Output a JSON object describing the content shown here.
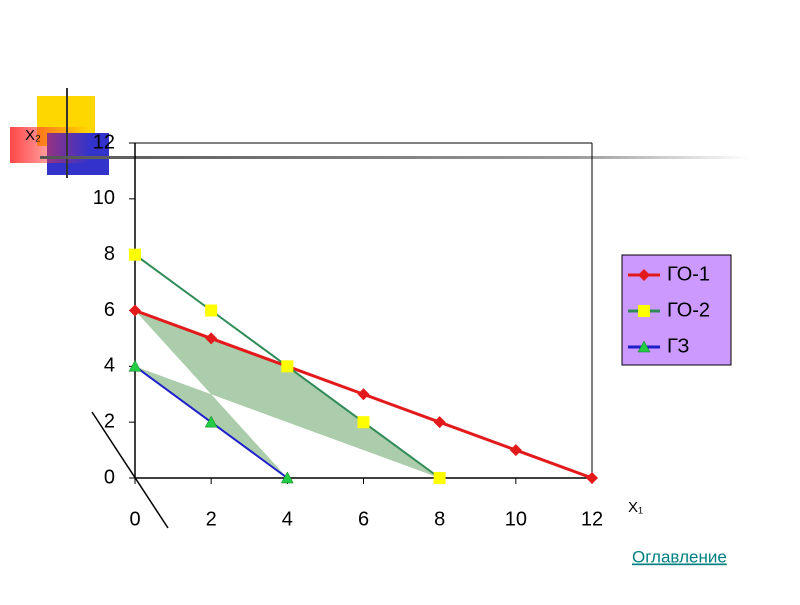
{
  "chart_data": {
    "type": "line",
    "xlabel": "X₁",
    "ylabel": "X₂",
    "xlim": [
      0,
      12
    ],
    "ylim": [
      0,
      12
    ],
    "xticks": [
      0,
      2,
      4,
      6,
      8,
      10,
      12
    ],
    "yticks": [
      0,
      2,
      4,
      6,
      8,
      10,
      12
    ],
    "legend": "right",
    "series": [
      {
        "name": "ГО-1",
        "color": "#e31a1c",
        "marker": "diamond",
        "marker_color": "#e31a1c",
        "x": [
          0,
          2,
          4,
          6,
          8,
          10,
          12
        ],
        "values": [
          6,
          5,
          4,
          3,
          2,
          1,
          0
        ]
      },
      {
        "name": "ГО-2",
        "color": "#2e8b57",
        "marker": "square",
        "marker_color": "#ffff00",
        "x": [
          0,
          2,
          4,
          6,
          8
        ],
        "values": [
          8,
          6,
          4,
          2,
          0
        ]
      },
      {
        "name": "ГЗ",
        "color": "#1f1fcc",
        "marker": "triangle",
        "marker_color": "#22cc44",
        "x": [
          0,
          2,
          4
        ],
        "values": [
          4,
          2,
          0
        ]
      }
    ]
  },
  "link": "Оглавление"
}
